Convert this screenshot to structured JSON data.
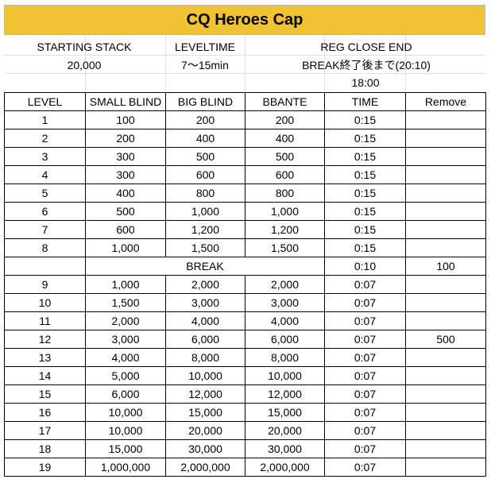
{
  "title": "CQ Heroes Cap",
  "info": {
    "starting_stack_label": "STARTING STACK",
    "starting_stack_value": "20,000",
    "leveltime_label": "LEVELTIME",
    "leveltime_value": "7～15min",
    "reg_close_label": "REG CLOSE END",
    "reg_close_value": "BREAK終了後まで(20:10)",
    "reg_close_time": "18:00"
  },
  "table": {
    "headers": [
      "LEVEL",
      "SMALL BLIND",
      "BIG BLIND",
      "BBANTE",
      "TIME",
      "Remove"
    ],
    "rows": [
      {
        "level": "1",
        "sb": "100",
        "bb": "200",
        "ante": "200",
        "time": "0:15",
        "remove": ""
      },
      {
        "level": "2",
        "sb": "200",
        "bb": "400",
        "ante": "400",
        "time": "0:15",
        "remove": ""
      },
      {
        "level": "3",
        "sb": "300",
        "bb": "500",
        "ante": "500",
        "time": "0:15",
        "remove": ""
      },
      {
        "level": "4",
        "sb": "300",
        "bb": "600",
        "ante": "600",
        "time": "0:15",
        "remove": ""
      },
      {
        "level": "5",
        "sb": "400",
        "bb": "800",
        "ante": "800",
        "time": "0:15",
        "remove": ""
      },
      {
        "level": "6",
        "sb": "500",
        "bb": "1,000",
        "ante": "1,000",
        "time": "0:15",
        "remove": ""
      },
      {
        "level": "7",
        "sb": "600",
        "bb": "1,200",
        "ante": "1,200",
        "time": "0:15",
        "remove": ""
      },
      {
        "level": "8",
        "sb": "1,000",
        "bb": "1,500",
        "ante": "1,500",
        "time": "0:15",
        "remove": ""
      },
      {
        "break": true,
        "label": "BREAK",
        "time": "0:10",
        "remove": "100"
      },
      {
        "level": "9",
        "sb": "1,000",
        "bb": "2,000",
        "ante": "2,000",
        "time": "0:07",
        "remove": ""
      },
      {
        "level": "10",
        "sb": "1,500",
        "bb": "3,000",
        "ante": "3,000",
        "time": "0:07",
        "remove": ""
      },
      {
        "level": "11",
        "sb": "2,000",
        "bb": "4,000",
        "ante": "4,000",
        "time": "0:07",
        "remove": ""
      },
      {
        "level": "12",
        "sb": "3,000",
        "bb": "6,000",
        "ante": "6,000",
        "time": "0:07",
        "remove": "500"
      },
      {
        "level": "13",
        "sb": "4,000",
        "bb": "8,000",
        "ante": "8,000",
        "time": "0:07",
        "remove": ""
      },
      {
        "level": "14",
        "sb": "5,000",
        "bb": "10,000",
        "ante": "10,000",
        "time": "0:07",
        "remove": ""
      },
      {
        "level": "15",
        "sb": "6,000",
        "bb": "12,000",
        "ante": "12,000",
        "time": "0:07",
        "remove": ""
      },
      {
        "level": "16",
        "sb": "10,000",
        "bb": "15,000",
        "ante": "15,000",
        "time": "0:07",
        "remove": ""
      },
      {
        "level": "17",
        "sb": "10,000",
        "bb": "20,000",
        "ante": "20,000",
        "time": "0:07",
        "remove": ""
      },
      {
        "level": "18",
        "sb": "15,000",
        "bb": "30,000",
        "ante": "30,000",
        "time": "0:07",
        "remove": ""
      },
      {
        "level": "19",
        "sb": "1,000,000",
        "bb": "2,000,000",
        "ante": "2,000,000",
        "time": "0:07",
        "remove": ""
      }
    ]
  },
  "colors": {
    "title_bg": "#f1c232",
    "border": "#000000"
  }
}
